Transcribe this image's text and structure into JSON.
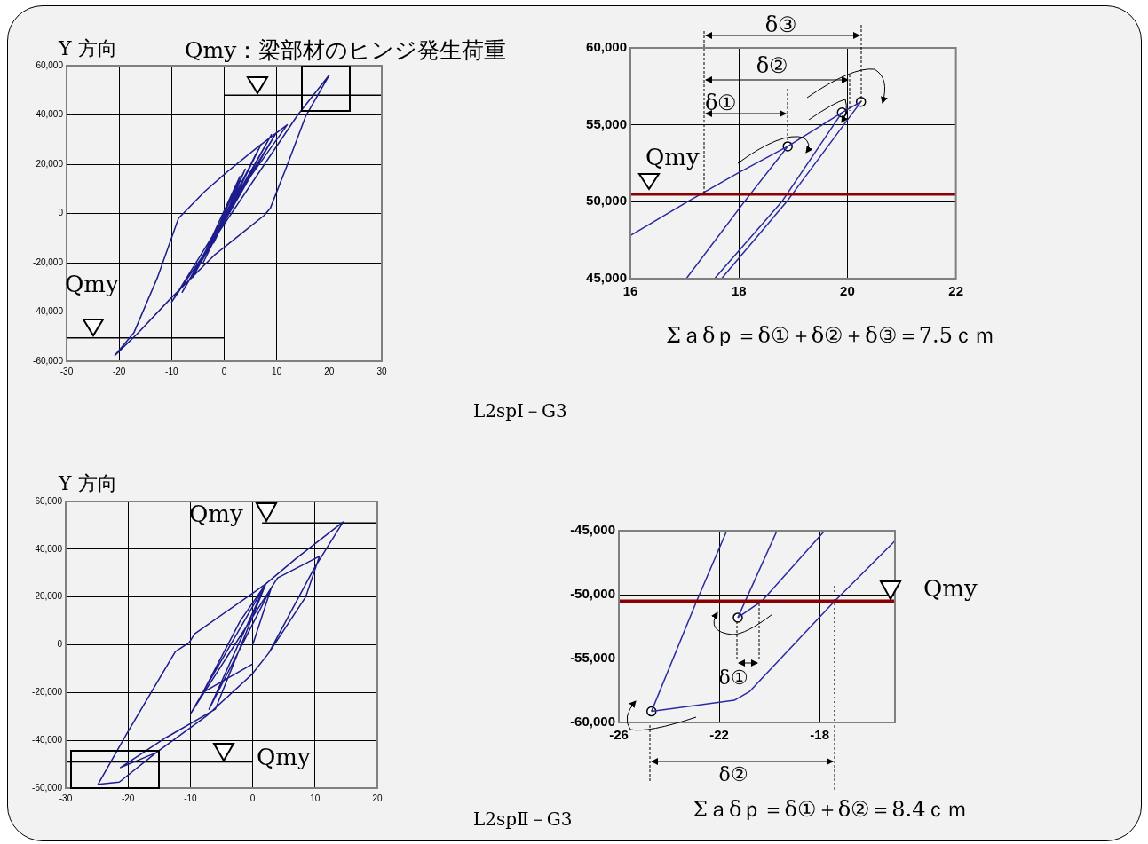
{
  "chart_data": [
    {
      "type": "line",
      "xlim": [
        -30,
        30
      ],
      "xticks": [
        -30,
        -20,
        -10,
        0,
        10,
        20,
        30
      ],
      "ylim": [
        -60000,
        60000
      ],
      "yticks": [
        {
          "value": -60000,
          "label": "-60,000"
        },
        {
          "value": -40000,
          "label": "-40,000"
        },
        {
          "value": -20000,
          "label": "-20,000"
        },
        {
          "value": 0,
          "label": "0"
        },
        {
          "value": 20000,
          "label": "20,000"
        },
        {
          "value": 40000,
          "label": "40,000"
        },
        {
          "value": 60000,
          "label": "60,000"
        }
      ],
      "grid": true,
      "series": [
        {
          "type": "line",
          "color": "#1c1c8c",
          "x": [
            0,
            4,
            -2,
            6,
            -4,
            7,
            -6,
            9,
            -8,
            10,
            -10,
            14,
            20,
            15.5,
            12.1,
            8.8,
            7.6,
            -1.9,
            -10.4,
            -16.6,
            -20.8,
            -17.2,
            -12.7,
            -8.7,
            -3.7,
            0.8,
            6.4,
            12,
            5,
            -5,
            3,
            -2
          ],
          "values": [
            0,
            18000,
            -12000,
            24000,
            -20000,
            28000,
            -26000,
            32000,
            -32000,
            33000,
            -36000,
            40000,
            56200,
            39400,
            20200,
            2200,
            -800,
            -17000,
            -35000,
            -49000,
            -57600,
            -48500,
            -26000,
            -2000,
            8900,
            17300,
            27000,
            36000,
            15000,
            -22000,
            15000,
            -10000
          ]
        },
        {
          "type": "line",
          "color": "#000000",
          "x": [
            0,
            30
          ],
          "values": [
            48000,
            48000
          ]
        },
        {
          "type": "line",
          "color": "#000000",
          "x": [
            -30,
            0
          ],
          "values": [
            -50500,
            -50500
          ]
        }
      ],
      "annotations": [
        "Y 方向",
        "Qmy：梁部材のヒンジ発生荷重",
        "Qmy",
        "L2spⅠ－G3"
      ]
    },
    {
      "type": "line",
      "xlim": [
        16,
        22
      ],
      "xticks": [
        16,
        18,
        20,
        22
      ],
      "ylim": [
        45000,
        60000
      ],
      "yticks": [
        {
          "value": 45000,
          "label": "45,000"
        },
        {
          "value": 50000,
          "label": "50,000"
        },
        {
          "value": 55000,
          "label": "55,000"
        },
        {
          "value": 60000,
          "label": "60,000"
        }
      ],
      "grid": true,
      "series": [
        {
          "type": "line",
          "color": "#2a2aa0",
          "x": [
            16,
            17.05,
            18,
            18.9,
            19.9,
            20.25
          ],
          "values": [
            47800,
            50000,
            51900,
            53600,
            55800,
            56500
          ]
        },
        {
          "type": "line",
          "color": "#2a2aa0",
          "x": [
            17.03,
            18.1,
            18.9
          ],
          "values": [
            45000,
            50000,
            53600
          ]
        },
        {
          "type": "line",
          "color": "#2a2aa0",
          "x": [
            17.55,
            18.79,
            19.9
          ],
          "values": [
            45000,
            50000,
            55800
          ]
        },
        {
          "type": "line",
          "color": "#2a2aa0",
          "x": [
            17.68,
            18.88,
            20.25
          ],
          "values": [
            45000,
            50000,
            56500
          ]
        },
        {
          "type": "scatter",
          "marker": "circle",
          "color": "#000000",
          "x": [
            18.9,
            19.9,
            20.25
          ],
          "values": [
            53600,
            55800,
            56500
          ]
        }
      ],
      "ref_lines": [
        {
          "axis": "y",
          "value": 50500,
          "color": "#8b0000"
        }
      ],
      "annotations": [
        "δ③",
        "δ②",
        {
          "text": "δ①",
          "x": 18.9,
          "y": 53600
        },
        "Qmy",
        "Σａδｐ＝δ①＋δ②＋δ③＝7.5ｃｍ"
      ]
    },
    {
      "type": "line",
      "xlim": [
        -30,
        20
      ],
      "xticks": [
        -30,
        -20,
        -10,
        0,
        10,
        20
      ],
      "ylim": [
        -60000,
        60000
      ],
      "yticks": [
        {
          "value": -60000,
          "label": "-60,000"
        },
        {
          "value": -40000,
          "label": "-40,000"
        },
        {
          "value": -20000,
          "label": "-20,000"
        },
        {
          "value": 0,
          "label": "0"
        },
        {
          "value": 20000,
          "label": "20,000"
        },
        {
          "value": 40000,
          "label": "40,000"
        },
        {
          "value": 60000,
          "label": "60,000"
        }
      ],
      "grid": true,
      "series": [
        {
          "type": "line",
          "color": "#1c1c8c",
          "x": [
            0,
            3,
            -7,
            2,
            -10,
            4,
            10.7,
            8.5,
            2.6,
            -0.2,
            -7.4,
            -15.5,
            -21.2,
            -14,
            -6,
            2.1,
            6.9,
            14.5,
            9.8,
            2.6,
            -0.2,
            -7.4,
            -15.5,
            -21.4,
            -24.8,
            -20.2,
            -12.4,
            -10.2,
            -9.3,
            -0.2,
            2.1,
            -2,
            -8,
            0
          ],
          "values": [
            0,
            24000,
            -27000,
            25000,
            -29000,
            28000,
            37000,
            20000,
            -3400,
            -12600,
            -29800,
            -45200,
            -51400,
            -39000,
            -27000,
            25500,
            36000,
            51400,
            31700,
            -3400,
            -12600,
            -29800,
            -45200,
            -57500,
            -58400,
            -37200,
            -2800,
            900,
            4600,
            21200,
            25500,
            10000,
            -20000,
            -8000
          ]
        },
        {
          "type": "line",
          "color": "#000000",
          "x": [
            1.5,
            20
          ],
          "values": [
            51000,
            51000
          ]
        },
        {
          "type": "line",
          "color": "#000000",
          "x": [
            -30,
            0
          ],
          "values": [
            -49000,
            -49000
          ]
        }
      ],
      "annotations": [
        "Y 方向",
        "Qmy",
        "Qmy",
        "L2spⅡ－G3"
      ]
    },
    {
      "type": "line",
      "xlim": [
        -26,
        -15
      ],
      "xticks": [
        -26,
        -22,
        -18
      ],
      "ylim": [
        -60000,
        -45000
      ],
      "yticks": [
        {
          "value": -60000,
          "label": "-60,000"
        },
        {
          "value": -55000,
          "label": "-55,000"
        },
        {
          "value": -50000,
          "label": "-50,000"
        },
        {
          "value": -45000,
          "label": "-45,000"
        }
      ],
      "grid": true,
      "series": [
        {
          "type": "line",
          "color": "#2a2aa0",
          "x": [
            -24.7,
            -22.9,
            -21.7
          ],
          "values": [
            -59140,
            -50500,
            -45000
          ]
        },
        {
          "type": "line",
          "color": "#2a2aa0",
          "x": [
            -21.26,
            -19.7
          ],
          "values": [
            -51800,
            -45000
          ]
        },
        {
          "type": "line",
          "color": "#2a2aa0",
          "x": [
            -21.26,
            -20.3,
            -17.8
          ],
          "values": [
            -51800,
            -50500,
            -45000
          ]
        },
        {
          "type": "line",
          "color": "#2a2aa0",
          "x": [
            -24.7,
            -21.4,
            -20.8,
            -17.4,
            -15
          ],
          "values": [
            -59140,
            -58270,
            -57600,
            -50500,
            -45800
          ]
        },
        {
          "type": "line",
          "color": "#000000",
          "line_style": "dotted",
          "x": [
            -17.4,
            -17.4
          ],
          "values": [
            -49300,
            -60000
          ]
        },
        {
          "type": "scatter",
          "marker": "circle",
          "color": "#000000",
          "x": [
            -24.7,
            -21.26
          ],
          "values": [
            -59140,
            -51800
          ]
        }
      ],
      "ref_lines": [
        {
          "axis": "y",
          "value": -50500,
          "color": "#8b0000"
        }
      ],
      "annotations": [
        "Qmy",
        {
          "text": "δ①",
          "x": -21.26,
          "y": -51800
        },
        "δ②",
        "Σａδｐ＝δ①＋δ②＝8.4ｃｍ"
      ]
    }
  ]
}
